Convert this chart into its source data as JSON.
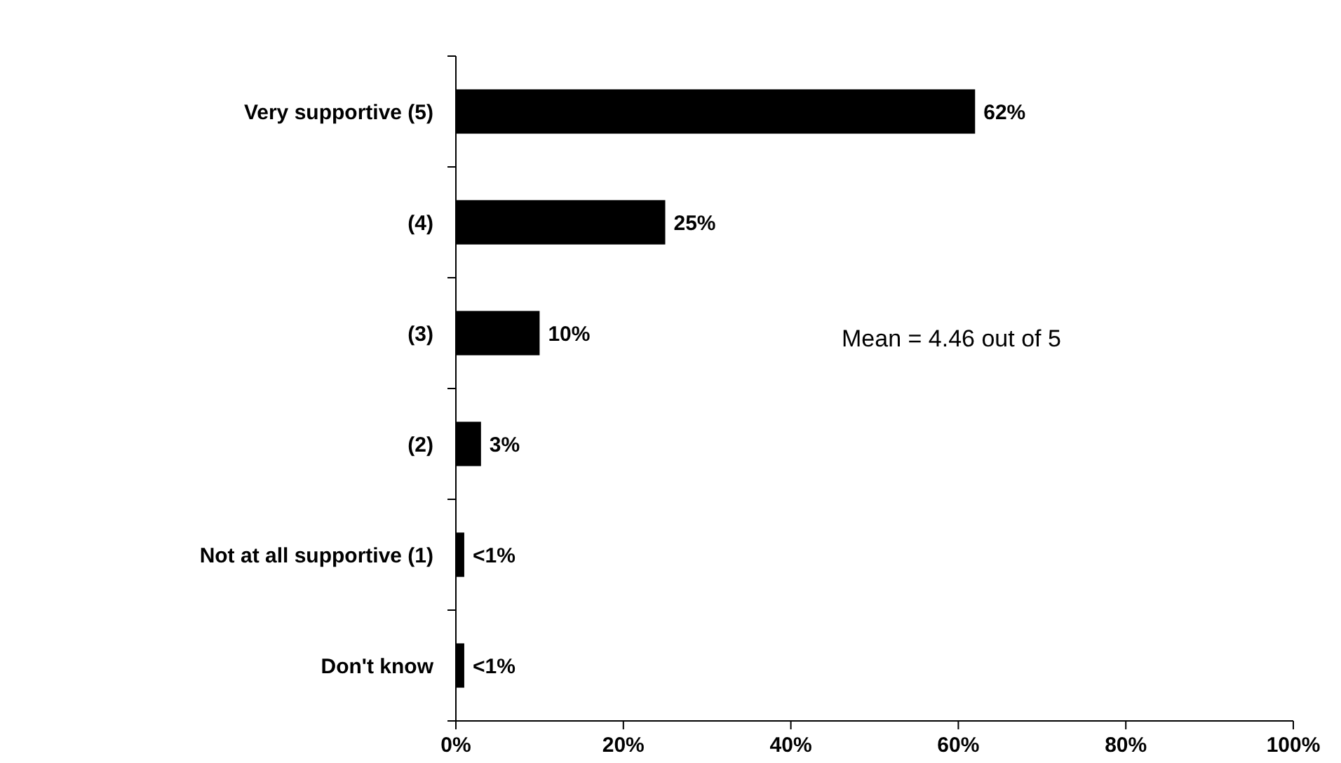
{
  "chart_data": {
    "type": "bar",
    "orientation": "horizontal",
    "categories": [
      "Very supportive (5)",
      "(4)",
      "(3)",
      "(2)",
      "Not at all supportive (1)",
      "Don't know"
    ],
    "values": [
      62,
      25,
      10,
      3,
      1,
      1
    ],
    "value_labels": [
      "62%",
      "25%",
      "10%",
      "3%",
      "<1%",
      "<1%"
    ],
    "color": "#000000",
    "xlim": [
      0,
      100
    ],
    "xticks": [
      {
        "value": 0,
        "label": "0%"
      },
      {
        "value": 20,
        "label": "20%"
      },
      {
        "value": 40,
        "label": "40%"
      },
      {
        "value": 60,
        "label": "60%"
      },
      {
        "value": 80,
        "label": "80%"
      },
      {
        "value": 100,
        "label": "100%"
      }
    ],
    "grid": false,
    "annotations": [
      "Mean = 4.46 out of 5"
    ]
  }
}
